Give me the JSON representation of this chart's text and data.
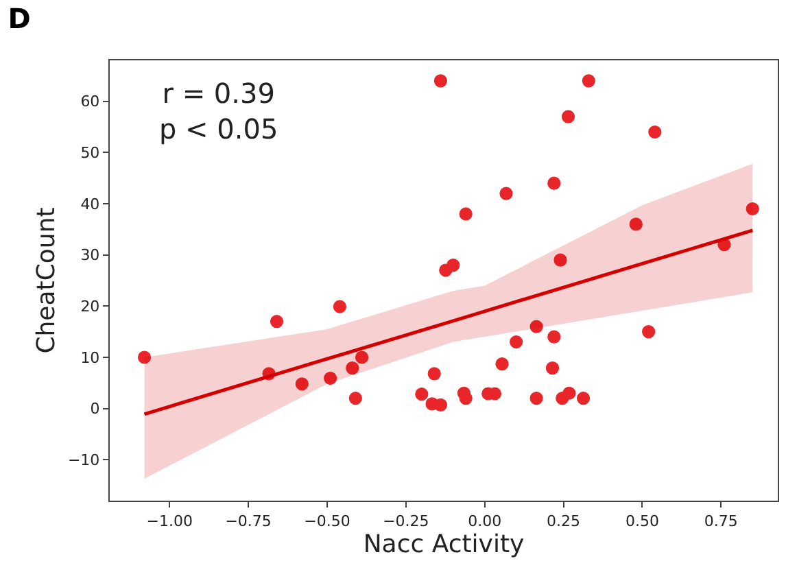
{
  "chart_data": {
    "type": "scatter",
    "title": "D",
    "xlabel": "Nacc Activity",
    "ylabel": "CheatCount",
    "annotations": [
      "r = 0.39\np < 0.05"
    ],
    "xlim": [
      -1.19,
      0.93
    ],
    "ylim": [
      -18,
      68
    ],
    "xticks": [
      {
        "value": -1.0,
        "label": "−1.00"
      },
      {
        "value": -0.75,
        "label": "−0.75"
      },
      {
        "value": -0.5,
        "label": "−0.50"
      },
      {
        "value": -0.25,
        "label": "−0.25"
      },
      {
        "value": 0,
        "label": "0.00"
      },
      {
        "value": 0.25,
        "label": "0.25"
      },
      {
        "value": 0.5,
        "label": "0.50"
      },
      {
        "value": 0.75,
        "label": "0.75"
      }
    ],
    "yticks": [
      {
        "value": -10,
        "label": "−10"
      },
      0,
      10,
      20,
      30,
      40,
      50,
      60
    ],
    "marker": "circle",
    "series": [
      {
        "color": "#e8262a",
        "x": [
          -1.08,
          -0.66,
          -0.685,
          -0.58,
          -0.46,
          -0.49,
          -0.42,
          -0.39,
          -0.41,
          -0.14,
          -0.2,
          -0.16,
          -0.167,
          -0.14,
          0.33,
          0.265,
          0.54,
          0.068,
          0.22,
          -0.06,
          0.85,
          0.48,
          0.76,
          -0.124,
          -0.1,
          0.24,
          0.52,
          0.164,
          0.1,
          0.22,
          0.055,
          0.215,
          -0.066,
          -0.06,
          0.011,
          0.032,
          0.164,
          0.246,
          0.268,
          0.313
        ],
        "values": [
          10,
          17,
          6.8,
          4.8,
          19.9,
          5.9,
          7.9,
          10,
          2,
          64,
          2.8,
          6.8,
          0.9,
          0.7,
          64,
          57,
          54,
          42,
          44,
          38,
          39,
          36,
          32,
          27,
          28,
          29,
          15,
          16,
          13,
          14,
          8.7,
          7.9,
          3,
          2,
          2.9,
          2.9,
          2,
          2,
          3,
          2
        ]
      },
      {
        "type": "line",
        "color": "#d40000",
        "line_style": "solid",
        "marker": "none",
        "x": [
          -1.08,
          -0.5,
          -0.1,
          0.0,
          0.5,
          0.85
        ],
        "values": [
          -1.1,
          9.7,
          17.1,
          19.0,
          28.3,
          34.8
        ],
        "lower": [
          -13.7,
          4.8,
          13,
          14,
          19.1,
          22.7
        ],
        "upper": [
          10,
          15.5,
          23,
          24,
          39.7,
          47.8
        ]
      }
    ]
  }
}
